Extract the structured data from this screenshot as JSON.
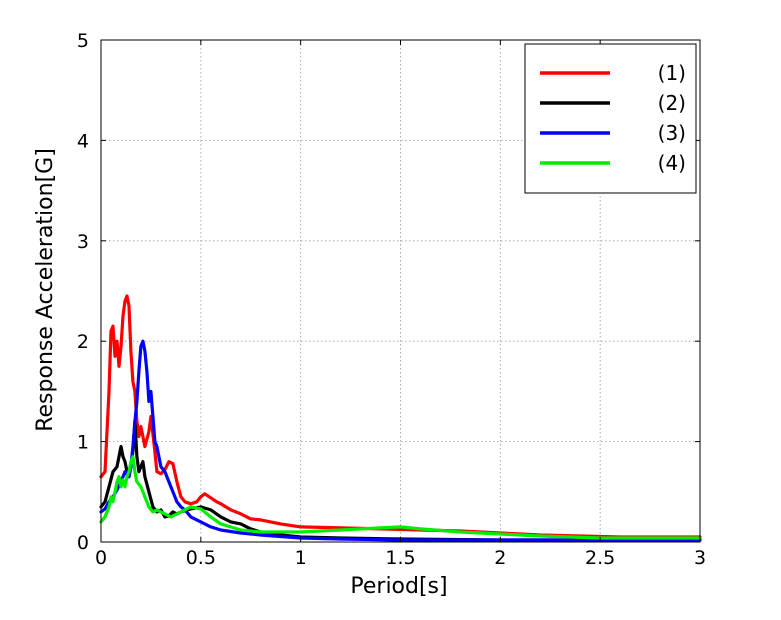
{
  "chart_data": {
    "type": "line",
    "xlabel": "Period[s]",
    "ylabel": "Response Acceleration[G]",
    "xlim": [
      0,
      3
    ],
    "ylim": [
      0,
      5
    ],
    "x_ticks": [
      "0",
      "0.5",
      "1",
      "1.5",
      "2",
      "2.5",
      "3"
    ],
    "y_ticks": [
      "0",
      "1",
      "2",
      "3",
      "4",
      "5"
    ],
    "grid": true,
    "legend_position": "top-right",
    "series": [
      {
        "name": "(1)",
        "color": "#ff0000",
        "x": [
          0.0,
          0.02,
          0.04,
          0.05,
          0.06,
          0.07,
          0.08,
          0.09,
          0.1,
          0.11,
          0.12,
          0.13,
          0.14,
          0.15,
          0.16,
          0.17,
          0.18,
          0.19,
          0.2,
          0.22,
          0.24,
          0.25,
          0.27,
          0.28,
          0.3,
          0.32,
          0.34,
          0.36,
          0.38,
          0.4,
          0.42,
          0.45,
          0.48,
          0.5,
          0.52,
          0.55,
          0.58,
          0.6,
          0.65,
          0.7,
          0.75,
          0.8,
          0.9,
          1.0,
          1.2,
          1.4,
          1.6,
          1.8,
          2.0,
          2.2,
          2.4,
          2.6,
          2.8,
          3.0
        ],
        "values": [
          0.65,
          0.7,
          1.5,
          2.1,
          2.15,
          1.85,
          2.0,
          1.75,
          1.95,
          2.25,
          2.4,
          2.45,
          2.35,
          1.9,
          1.6,
          1.5,
          1.2,
          1.05,
          1.15,
          0.95,
          1.1,
          1.25,
          0.9,
          0.7,
          0.68,
          0.72,
          0.8,
          0.78,
          0.6,
          0.45,
          0.4,
          0.38,
          0.4,
          0.45,
          0.48,
          0.44,
          0.4,
          0.38,
          0.32,
          0.28,
          0.23,
          0.22,
          0.18,
          0.15,
          0.14,
          0.13,
          0.12,
          0.11,
          0.09,
          0.07,
          0.06,
          0.05,
          0.05,
          0.05
        ]
      },
      {
        "name": "(2)",
        "color": "#000000",
        "x": [
          0.0,
          0.02,
          0.04,
          0.06,
          0.08,
          0.1,
          0.11,
          0.12,
          0.13,
          0.14,
          0.15,
          0.16,
          0.17,
          0.18,
          0.19,
          0.2,
          0.21,
          0.22,
          0.24,
          0.26,
          0.28,
          0.3,
          0.32,
          0.34,
          0.36,
          0.38,
          0.4,
          0.45,
          0.5,
          0.55,
          0.6,
          0.65,
          0.7,
          0.75,
          0.8,
          0.9,
          1.0,
          1.2,
          1.5,
          2.0,
          2.5,
          3.0
        ],
        "values": [
          0.35,
          0.4,
          0.55,
          0.7,
          0.75,
          0.95,
          0.85,
          0.8,
          0.7,
          0.65,
          0.75,
          0.9,
          1.2,
          0.85,
          0.7,
          0.75,
          0.8,
          0.65,
          0.5,
          0.35,
          0.3,
          0.32,
          0.25,
          0.26,
          0.3,
          0.28,
          0.3,
          0.33,
          0.35,
          0.32,
          0.25,
          0.2,
          0.18,
          0.13,
          0.1,
          0.07,
          0.05,
          0.04,
          0.03,
          0.02,
          0.02,
          0.02
        ]
      },
      {
        "name": "(3)",
        "color": "#0000ff",
        "x": [
          0.0,
          0.02,
          0.04,
          0.06,
          0.08,
          0.1,
          0.12,
          0.14,
          0.15,
          0.16,
          0.17,
          0.18,
          0.19,
          0.2,
          0.21,
          0.22,
          0.23,
          0.24,
          0.25,
          0.26,
          0.27,
          0.28,
          0.29,
          0.3,
          0.32,
          0.34,
          0.36,
          0.38,
          0.4,
          0.42,
          0.45,
          0.5,
          0.55,
          0.6,
          0.7,
          0.8,
          1.0,
          1.2,
          1.5,
          2.0,
          2.5,
          3.0
        ],
        "values": [
          0.3,
          0.33,
          0.4,
          0.45,
          0.52,
          0.6,
          0.7,
          0.65,
          0.75,
          0.95,
          1.2,
          1.4,
          1.7,
          1.95,
          2.0,
          1.9,
          1.7,
          1.4,
          1.5,
          1.25,
          1.0,
          0.95,
          0.85,
          0.75,
          0.7,
          0.6,
          0.5,
          0.4,
          0.35,
          0.32,
          0.25,
          0.2,
          0.15,
          0.12,
          0.09,
          0.07,
          0.04,
          0.03,
          0.02,
          0.02,
          0.02,
          0.02
        ]
      },
      {
        "name": "(4)",
        "color": "#00ee00",
        "x": [
          0.0,
          0.02,
          0.04,
          0.05,
          0.06,
          0.07,
          0.08,
          0.09,
          0.1,
          0.11,
          0.12,
          0.13,
          0.14,
          0.15,
          0.16,
          0.17,
          0.18,
          0.2,
          0.22,
          0.24,
          0.26,
          0.28,
          0.3,
          0.35,
          0.4,
          0.45,
          0.5,
          0.55,
          0.6,
          0.7,
          0.8,
          0.9,
          1.0,
          1.2,
          1.4,
          1.5,
          1.6,
          1.8,
          2.0,
          2.2,
          2.5,
          2.8,
          3.0
        ],
        "values": [
          0.2,
          0.25,
          0.35,
          0.45,
          0.4,
          0.5,
          0.6,
          0.65,
          0.55,
          0.62,
          0.55,
          0.65,
          0.7,
          0.8,
          0.85,
          0.7,
          0.6,
          0.55,
          0.45,
          0.35,
          0.3,
          0.32,
          0.3,
          0.25,
          0.3,
          0.35,
          0.33,
          0.25,
          0.18,
          0.12,
          0.1,
          0.1,
          0.1,
          0.12,
          0.14,
          0.15,
          0.13,
          0.1,
          0.08,
          0.06,
          0.04,
          0.04,
          0.04
        ]
      }
    ]
  }
}
